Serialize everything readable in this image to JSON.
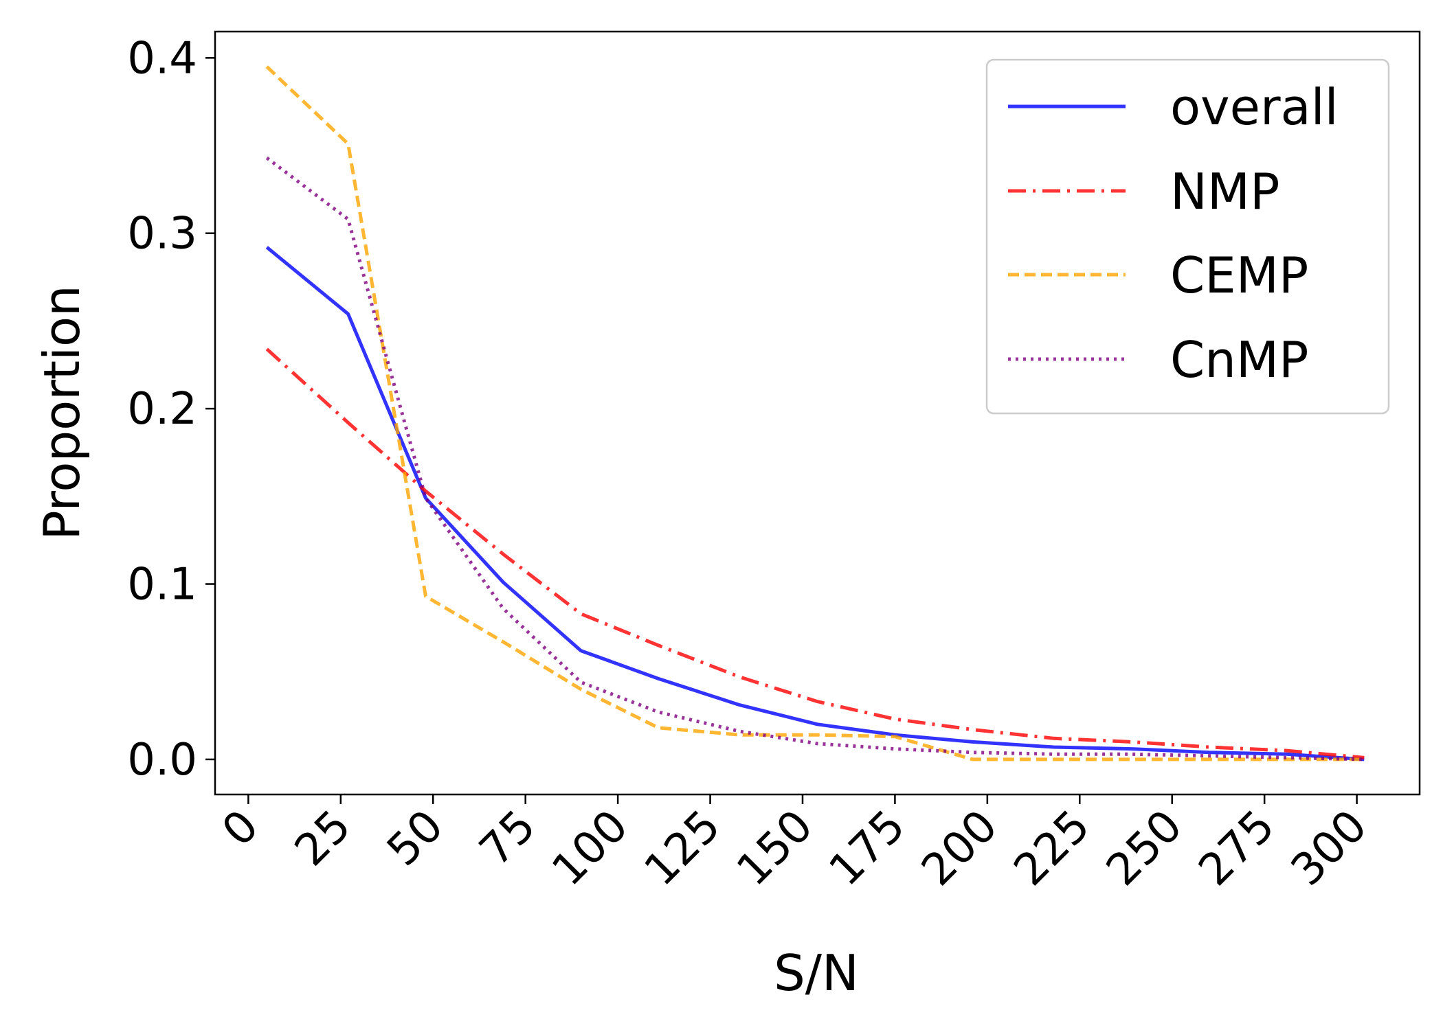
{
  "chart_data": {
    "type": "line",
    "title": "",
    "xlabel": "S/N",
    "ylabel": "Proportion",
    "xlim": [
      -9,
      317
    ],
    "ylim": [
      -0.02,
      0.415
    ],
    "xticks": [
      0,
      25,
      50,
      75,
      100,
      125,
      150,
      175,
      200,
      225,
      250,
      275,
      300
    ],
    "xtick_labels": [
      "0",
      "25",
      "50",
      "75",
      "100",
      "125",
      "150",
      "175",
      "200",
      "225",
      "250",
      "275",
      "300"
    ],
    "yticks": [
      0.0,
      0.1,
      0.2,
      0.3,
      0.4
    ],
    "ytick_labels": [
      "0.0",
      "0.1",
      "0.2",
      "0.3",
      "0.4"
    ],
    "x": [
      5,
      27,
      48,
      69,
      90,
      111,
      133,
      154,
      175,
      196,
      218,
      239,
      260,
      281,
      302
    ],
    "series": [
      {
        "name": "overall",
        "color": "#0000ff",
        "style": "solid",
        "values": [
          0.292,
          0.254,
          0.149,
          0.101,
          0.062,
          0.046,
          0.031,
          0.02,
          0.014,
          0.01,
          0.007,
          0.006,
          0.004,
          0.003,
          0.0
        ]
      },
      {
        "name": "NMP",
        "color": "#ff0000",
        "style": "dashdot",
        "values": [
          0.234,
          0.192,
          0.153,
          0.117,
          0.083,
          0.065,
          0.047,
          0.033,
          0.023,
          0.017,
          0.012,
          0.01,
          0.007,
          0.005,
          0.001
        ]
      },
      {
        "name": "CEMP",
        "color": "#ffa500",
        "style": "dashed",
        "values": [
          0.395,
          0.351,
          0.093,
          0.067,
          0.04,
          0.018,
          0.014,
          0.014,
          0.013,
          0.0,
          0.0,
          0.0,
          0.0,
          0.0,
          0.0
        ]
      },
      {
        "name": "CnMP",
        "color": "#800080",
        "style": "dotted",
        "values": [
          0.343,
          0.308,
          0.149,
          0.086,
          0.044,
          0.027,
          0.016,
          0.009,
          0.006,
          0.004,
          0.003,
          0.003,
          0.002,
          0.001,
          0.0
        ]
      }
    ],
    "legend": {
      "position": "upper right",
      "entries": [
        "overall",
        "NMP",
        "CEMP",
        "CnMP"
      ]
    },
    "grid": false
  }
}
